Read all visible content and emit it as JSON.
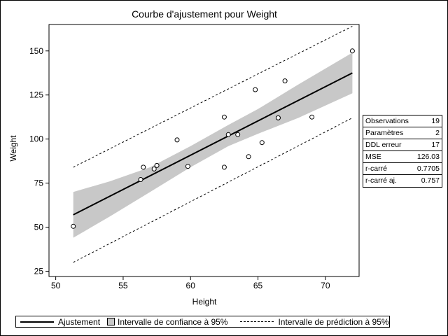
{
  "chart_data": {
    "type": "scatter",
    "title": "Courbe d'ajustement pour Weight",
    "xlabel": "Height",
    "ylabel": "Weight",
    "xlim": [
      49.5,
      72.5
    ],
    "ylim": [
      22,
      165
    ],
    "x_ticks": [
      50,
      55,
      60,
      65,
      70
    ],
    "y_ticks": [
      25,
      50,
      75,
      100,
      125,
      150
    ],
    "x_tick_labels": [
      "50",
      "55",
      "60",
      "65",
      "70"
    ],
    "y_tick_labels": [
      "25",
      "50",
      "75",
      "100",
      "125",
      "150"
    ],
    "points": [
      {
        "x": 51.3,
        "y": 50.5
      },
      {
        "x": 56.3,
        "y": 77.0
      },
      {
        "x": 56.5,
        "y": 84.0
      },
      {
        "x": 57.3,
        "y": 83.0
      },
      {
        "x": 57.5,
        "y": 85.0
      },
      {
        "x": 59.0,
        "y": 99.5
      },
      {
        "x": 59.8,
        "y": 84.5
      },
      {
        "x": 62.5,
        "y": 112.5
      },
      {
        "x": 62.5,
        "y": 84.0
      },
      {
        "x": 62.8,
        "y": 102.5
      },
      {
        "x": 63.5,
        "y": 102.5
      },
      {
        "x": 64.3,
        "y": 90.0
      },
      {
        "x": 64.8,
        "y": 128.0
      },
      {
        "x": 65.3,
        "y": 98.0
      },
      {
        "x": 66.5,
        "y": 112.0
      },
      {
        "x": 67.0,
        "y": 133.0
      },
      {
        "x": 69.0,
        "y": 112.5
      },
      {
        "x": 72.0,
        "y": 150.0
      },
      {
        "x": 66.5,
        "y": 112.0
      }
    ],
    "fit": {
      "x": [
        51.3,
        72.0
      ],
      "y": [
        57.0,
        137.5
      ]
    },
    "confidence_band": {
      "x": [
        51.3,
        54,
        57,
        60,
        62.8,
        65,
        68,
        72
      ],
      "lower": [
        44,
        56,
        70,
        84,
        96,
        103,
        112,
        126
      ],
      "upper": [
        70,
        76,
        84,
        96,
        108,
        117,
        131,
        149
      ]
    },
    "prediction_interval": {
      "x": [
        51.3,
        72.0
      ],
      "lower": [
        30,
        112
      ],
      "upper": [
        84,
        164
      ]
    },
    "grid": false,
    "legend_position": "bottom",
    "legend": {
      "fit_label": "Ajustement",
      "band_label": "Intervalle de confiance à 95%",
      "prediction_label": "Intervalle de prédiction à 95%"
    },
    "stats": [
      {
        "label": "Observations",
        "value": "19"
      },
      {
        "label": "Paramètres",
        "value": "2"
      },
      {
        "label": "DDL erreur",
        "value": "17"
      },
      {
        "label": "MSE",
        "value": "126.03"
      },
      {
        "label": "r-carré",
        "value": "0.7705"
      },
      {
        "label": "r-carré aj.",
        "value": "0.757"
      }
    ],
    "colors": {
      "band": "#c8c8c8",
      "line": "#000000",
      "marker": "#000000"
    }
  }
}
